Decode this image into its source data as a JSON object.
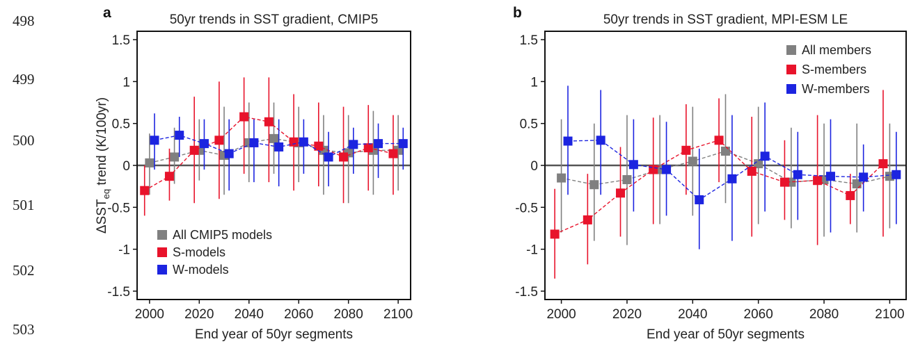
{
  "line_numbers": [
    "498",
    "499",
    "500",
    "501",
    "502",
    "503"
  ],
  "colors": {
    "all": "#808080",
    "s": "#e8132b",
    "w": "#1c24e0",
    "frame": "#111111",
    "zero": "#555555"
  },
  "chart_data": [
    {
      "type": "scatter",
      "panel_letter": "a",
      "title": "50yr trends in SST gradient, CMIP5",
      "xlabel": "End year of 50yr segments",
      "ylabel_main": "ΔSST",
      "ylabel_sub": "eq",
      "ylabel_rest": " trend (K/100yr)",
      "xlim": [
        1995,
        2105
      ],
      "ylim": [
        -1.6,
        1.6
      ],
      "xticks": [
        2000,
        2020,
        2040,
        2060,
        2080,
        2100
      ],
      "yticks": [
        1.5,
        1,
        0.5,
        0,
        -0.5,
        -1,
        -1.5
      ],
      "ytick_labels": [
        "1.5",
        "1",
        "0.5",
        "0",
        "-0.5",
        "-1",
        "-1.5"
      ],
      "legend_position": "bottom-left",
      "series": [
        {
          "name": "All CMIP5 models",
          "key": "all",
          "x": [
            2000,
            2010,
            2020,
            2030,
            2040,
            2050,
            2060,
            2070,
            2080,
            2090,
            2100
          ],
          "y": [
            0.03,
            0.1,
            0.18,
            0.12,
            0.27,
            0.32,
            0.27,
            0.18,
            0.15,
            0.18,
            0.18
          ],
          "lo": [
            -0.35,
            -0.22,
            -0.18,
            -0.35,
            -0.2,
            -0.1,
            -0.2,
            -0.35,
            -0.45,
            -0.35,
            -0.3
          ],
          "hi": [
            0.38,
            0.45,
            0.55,
            0.7,
            0.75,
            0.75,
            0.7,
            0.6,
            0.6,
            0.65,
            0.6
          ]
        },
        {
          "name": "S-models",
          "key": "s",
          "x": [
            1998,
            2008,
            2018,
            2028,
            2038,
            2048,
            2058,
            2068,
            2078,
            2088,
            2098
          ],
          "y": [
            -0.3,
            -0.13,
            0.18,
            0.3,
            0.58,
            0.52,
            0.28,
            0.23,
            0.1,
            0.21,
            0.14
          ],
          "lo": [
            -0.6,
            -0.42,
            -0.45,
            -0.4,
            -0.1,
            -0.2,
            -0.3,
            -0.25,
            -0.45,
            -0.3,
            -0.35
          ],
          "hi": [
            0.0,
            0.2,
            0.82,
            1.0,
            1.05,
            1.05,
            0.85,
            0.75,
            0.7,
            0.72,
            0.6
          ]
        },
        {
          "name": "W-models",
          "key": "w",
          "x": [
            2002,
            2012,
            2022,
            2032,
            2042,
            2052,
            2062,
            2072,
            2082,
            2092,
            2102
          ],
          "y": [
            0.3,
            0.36,
            0.26,
            0.14,
            0.27,
            0.22,
            0.28,
            0.1,
            0.25,
            0.26,
            0.26
          ],
          "lo": [
            -0.05,
            0.1,
            -0.05,
            -0.3,
            -0.2,
            -0.25,
            -0.1,
            -0.25,
            -0.1,
            -0.15,
            -0.05
          ],
          "hi": [
            0.62,
            0.58,
            0.55,
            0.55,
            0.55,
            0.55,
            0.55,
            0.4,
            0.45,
            0.5,
            0.45
          ]
        }
      ]
    },
    {
      "type": "scatter",
      "panel_letter": "b",
      "title": "50yr trends in SST gradient, MPI-ESM LE",
      "xlabel": "End year of 50yr segments",
      "xlim": [
        1995,
        2105
      ],
      "ylim": [
        -1.6,
        1.6
      ],
      "xticks": [
        2000,
        2020,
        2040,
        2060,
        2080,
        2100
      ],
      "yticks": [
        1.5,
        1,
        0.5,
        0,
        -0.5,
        -1,
        -1.5
      ],
      "ytick_labels": [
        "1.5",
        "1",
        "0.5",
        "0",
        "-0.5",
        "-1",
        "-1.5"
      ],
      "legend_position": "top-right",
      "series": [
        {
          "name": "All members",
          "key": "all",
          "x": [
            2000,
            2010,
            2020,
            2030,
            2040,
            2050,
            2060,
            2070,
            2080,
            2090,
            2100
          ],
          "y": [
            -0.15,
            -0.23,
            -0.17,
            -0.05,
            0.05,
            0.17,
            0.02,
            -0.2,
            -0.17,
            -0.22,
            -0.13
          ],
          "lo": [
            -0.8,
            -0.9,
            -0.95,
            -0.7,
            -0.6,
            -0.45,
            -0.7,
            -0.75,
            -0.85,
            -0.8,
            -0.75
          ],
          "hi": [
            0.55,
            0.5,
            0.6,
            0.6,
            0.7,
            0.85,
            0.7,
            0.45,
            0.5,
            0.5,
            0.5
          ]
        },
        {
          "name": "S-members",
          "key": "s",
          "x": [
            1998,
            2008,
            2018,
            2028,
            2038,
            2048,
            2058,
            2068,
            2078,
            2088,
            2098
          ],
          "y": [
            -0.82,
            -0.65,
            -0.33,
            -0.05,
            0.18,
            0.3,
            -0.07,
            -0.2,
            -0.18,
            -0.36,
            0.02
          ],
          "lo": [
            -1.35,
            -1.18,
            -0.85,
            -0.7,
            -0.35,
            -0.2,
            -0.85,
            -0.65,
            -0.95,
            -0.7,
            -0.85
          ],
          "hi": [
            -0.28,
            -0.1,
            0.22,
            0.57,
            0.73,
            0.8,
            0.58,
            0.3,
            0.6,
            -0.1,
            0.9
          ]
        },
        {
          "name": "W-members",
          "key": "w",
          "x": [
            2002,
            2012,
            2022,
            2032,
            2042,
            2052,
            2062,
            2072,
            2082,
            2092,
            2102
          ],
          "y": [
            0.29,
            0.3,
            0.01,
            -0.05,
            -0.41,
            -0.16,
            0.11,
            -0.11,
            -0.13,
            -0.14,
            -0.11
          ],
          "lo": [
            -0.35,
            -0.35,
            -0.55,
            -0.6,
            -1.0,
            -0.9,
            -0.55,
            -0.65,
            -0.8,
            -0.55,
            -0.7
          ],
          "hi": [
            0.95,
            0.9,
            0.55,
            0.52,
            0.2,
            0.6,
            0.75,
            0.4,
            0.55,
            0.25,
            0.4
          ]
        }
      ]
    }
  ]
}
